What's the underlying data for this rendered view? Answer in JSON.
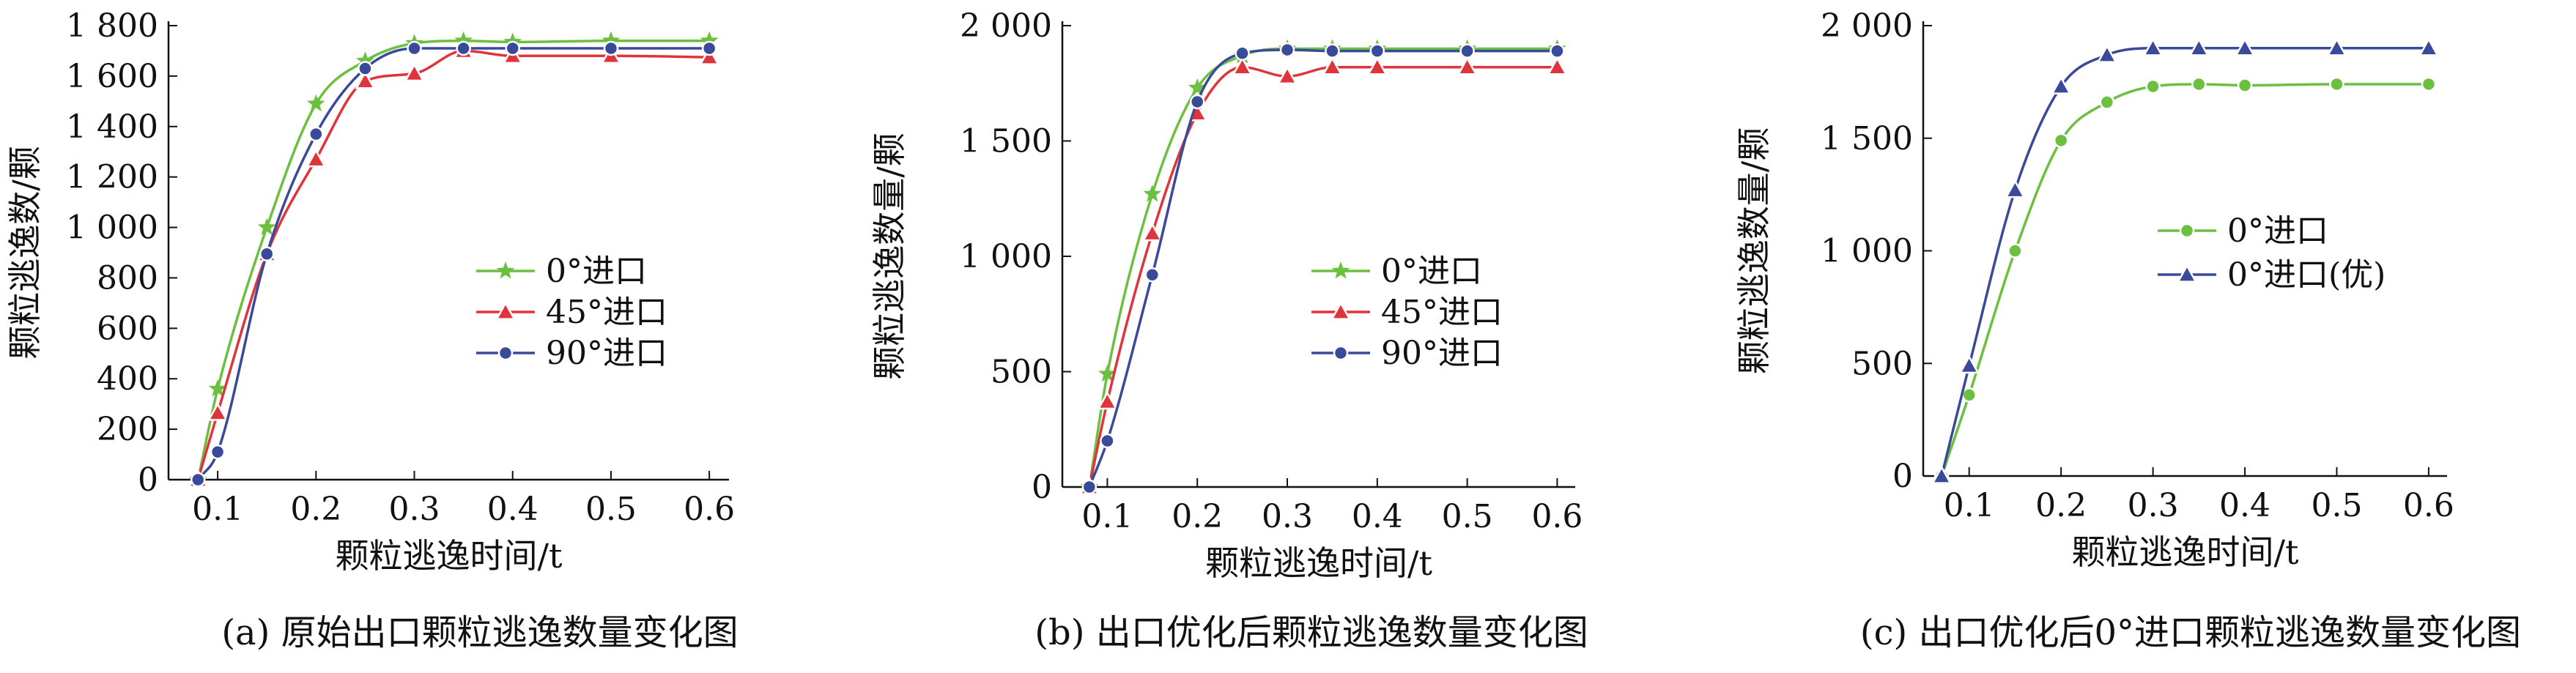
{
  "chart_data": [
    {
      "type": "line",
      "xlabel": "颗粒逃逸时间/t",
      "ylabel": "颗粒逃逸数/颗",
      "caption": "(a) 原始出口颗粒逃逸数量变化图",
      "xlim": [
        0.05,
        0.62
      ],
      "ylim": [
        0,
        1800
      ],
      "xticks": [
        0.1,
        0.2,
        0.3,
        0.4,
        0.5,
        0.6
      ],
      "xtick_labels": [
        "0.1",
        "0.2",
        "0.3",
        "0.4",
        "0.5",
        "0.6"
      ],
      "yticks": [
        0,
        200,
        400,
        600,
        800,
        1000,
        1200,
        1400,
        1600,
        1800
      ],
      "ytick_labels": [
        "0",
        "200",
        "400",
        "600",
        "800",
        "1 000",
        "1 200",
        "1 400",
        "1 600",
        "1 800"
      ],
      "legend_position": "center-right",
      "series": [
        {
          "name": "0°进口",
          "color": "#6cbf3f",
          "marker": "star",
          "x": [
            0.08,
            0.1,
            0.15,
            0.2,
            0.25,
            0.3,
            0.35,
            0.4,
            0.5,
            0.6
          ],
          "y": [
            0,
            360,
            1000,
            1490,
            1660,
            1730,
            1740,
            1735,
            1740,
            1740
          ]
        },
        {
          "name": "45°进口",
          "color": "#e0343c",
          "marker": "triangle",
          "x": [
            0.08,
            0.1,
            0.15,
            0.2,
            0.25,
            0.3,
            0.35,
            0.4,
            0.5,
            0.6
          ],
          "y": [
            0,
            265,
            895,
            1270,
            1580,
            1610,
            1700,
            1680,
            1680,
            1675
          ]
        },
        {
          "name": "90°进口",
          "color": "#3a4a9a",
          "marker": "circle",
          "x": [
            0.08,
            0.1,
            0.15,
            0.2,
            0.25,
            0.3,
            0.35,
            0.4,
            0.5,
            0.6
          ],
          "y": [
            0,
            110,
            895,
            1370,
            1630,
            1710,
            1710,
            1710,
            1710,
            1710
          ]
        }
      ]
    },
    {
      "type": "line",
      "xlabel": "颗粒逃逸时间/t",
      "ylabel": "颗粒逃逸数量/颗",
      "caption": "(b) 出口优化后颗粒逃逸数量变化图",
      "xlim": [
        0.05,
        0.62
      ],
      "ylim": [
        0,
        2000
      ],
      "xticks": [
        0.1,
        0.2,
        0.3,
        0.4,
        0.5,
        0.6
      ],
      "xtick_labels": [
        "0.1",
        "0.2",
        "0.3",
        "0.4",
        "0.5",
        "0.6"
      ],
      "yticks": [
        0,
        500,
        1000,
        1500,
        2000
      ],
      "ytick_labels": [
        "0",
        "500",
        "1 000",
        "1 500",
        "2 000"
      ],
      "legend_position": "center-right",
      "series": [
        {
          "name": "0°进口",
          "color": "#6cbf3f",
          "marker": "star",
          "x": [
            0.08,
            0.1,
            0.15,
            0.2,
            0.25,
            0.3,
            0.35,
            0.4,
            0.5,
            0.6
          ],
          "y": [
            0,
            490,
            1270,
            1730,
            1870,
            1900,
            1900,
            1900,
            1900,
            1900
          ]
        },
        {
          "name": "45°进口",
          "color": "#e0343c",
          "marker": "triangle",
          "x": [
            0.08,
            0.1,
            0.15,
            0.2,
            0.25,
            0.3,
            0.35,
            0.4,
            0.5,
            0.6
          ],
          "y": [
            0,
            370,
            1100,
            1620,
            1820,
            1780,
            1820,
            1820,
            1820,
            1820
          ]
        },
        {
          "name": "90°进口",
          "color": "#3a4a9a",
          "marker": "circle",
          "x": [
            0.08,
            0.1,
            0.15,
            0.2,
            0.25,
            0.3,
            0.35,
            0.4,
            0.5,
            0.6
          ],
          "y": [
            0,
            200,
            920,
            1670,
            1880,
            1895,
            1890,
            1890,
            1890,
            1890
          ]
        }
      ]
    },
    {
      "type": "line",
      "xlabel": "颗粒逃逸时间/t",
      "ylabel": "颗粒逃逸数量/颗",
      "caption": "(c) 出口优化后0°进口颗粒逃逸数量变化图",
      "xlim": [
        0.05,
        0.62
      ],
      "ylim": [
        0,
        2000
      ],
      "xticks": [
        0.1,
        0.2,
        0.3,
        0.4,
        0.5,
        0.6
      ],
      "xtick_labels": [
        "0.1",
        "0.2",
        "0.3",
        "0.4",
        "0.5",
        "0.6"
      ],
      "yticks": [
        0,
        500,
        1000,
        1500,
        2000
      ],
      "ytick_labels": [
        "0",
        "500",
        "1 000",
        "1 500",
        "2 000"
      ],
      "legend_position": "center-right",
      "series": [
        {
          "name": "0°进口",
          "color": "#6cbf3f",
          "marker": "circle",
          "x": [
            0.07,
            0.1,
            0.15,
            0.2,
            0.25,
            0.3,
            0.35,
            0.4,
            0.5,
            0.6
          ],
          "y": [
            0,
            360,
            1000,
            1490,
            1660,
            1730,
            1740,
            1735,
            1740,
            1740
          ]
        },
        {
          "name": "0°进口(优)",
          "color": "#3a4a9a",
          "marker": "triangle",
          "x": [
            0.07,
            0.1,
            0.15,
            0.2,
            0.25,
            0.3,
            0.35,
            0.4,
            0.5,
            0.6
          ],
          "y": [
            0,
            490,
            1270,
            1730,
            1870,
            1900,
            1900,
            1900,
            1900,
            1900
          ]
        }
      ]
    }
  ]
}
